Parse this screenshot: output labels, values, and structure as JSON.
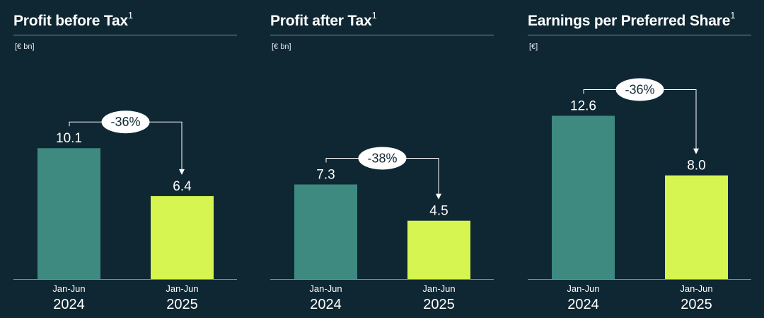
{
  "colors": {
    "background": "#0f2733",
    "bar_2024": "#3e8a80",
    "bar_2025": "#d6f551",
    "text": "#ffffff",
    "rule": "#7d8f98",
    "badge_fill": "#ffffff",
    "badge_text": "#0f2733"
  },
  "chart_data": [
    {
      "type": "bar",
      "title": "Profit before Tax",
      "title_footnote": "1",
      "unit": "[€ bn]",
      "categories": [
        {
          "period": "Jan-Jun",
          "year": "2024"
        },
        {
          "period": "Jan-Jun",
          "year": "2025"
        }
      ],
      "values": [
        10.1,
        6.4
      ],
      "value_labels": [
        "10.1",
        "6.4"
      ],
      "change_label": "-36%",
      "ylim": [
        0,
        16.4
      ]
    },
    {
      "type": "bar",
      "title": "Profit after Tax",
      "title_footnote": "1",
      "unit": "[€ bn]",
      "categories": [
        {
          "period": "Jan-Jun",
          "year": "2024"
        },
        {
          "period": "Jan-Jun",
          "year": "2025"
        }
      ],
      "values": [
        7.3,
        4.5
      ],
      "value_labels": [
        "7.3",
        "4.5"
      ],
      "change_label": "-38%",
      "ylim": [
        0,
        16.4
      ]
    },
    {
      "type": "bar",
      "title": "Earnings per Preferred Share",
      "title_footnote": "1",
      "unit": "[€]",
      "categories": [
        {
          "period": "Jan-Jun",
          "year": "2024"
        },
        {
          "period": "Jan-Jun",
          "year": "2025"
        }
      ],
      "values": [
        12.6,
        8.0
      ],
      "value_labels": [
        "12.6",
        "8.0"
      ],
      "change_label": "-36%",
      "ylim": [
        0,
        16.4
      ]
    }
  ]
}
